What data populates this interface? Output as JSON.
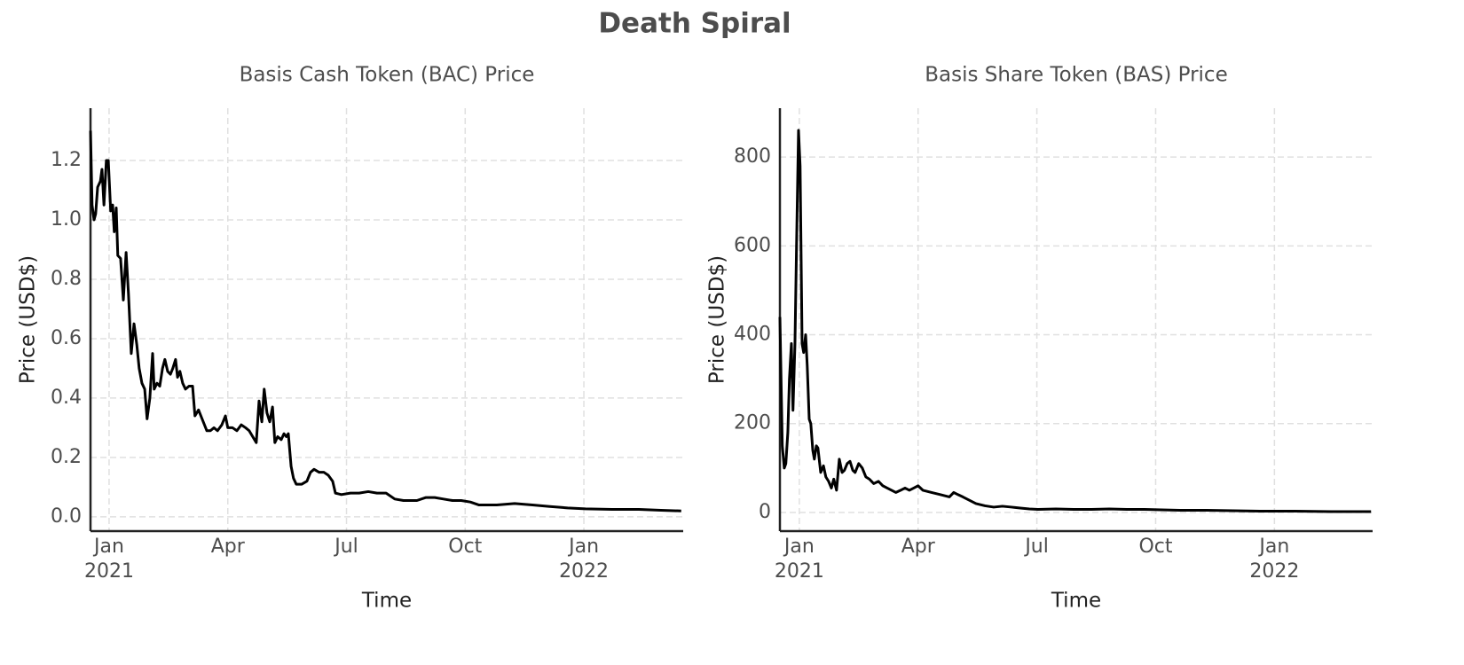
{
  "title": "Death Spiral",
  "chart_data": [
    {
      "type": "line",
      "title": "Basis Cash Token (BAC) Price",
      "xlabel": "Time",
      "ylabel": "Price (USD$)",
      "grid": true,
      "xlim": [
        -0.47,
        14.51
      ],
      "xticks": [
        {
          "value": 0,
          "label": "Jan\n2021"
        },
        {
          "value": 3,
          "label": "Apr"
        },
        {
          "value": 6,
          "label": "Jul"
        },
        {
          "value": 9,
          "label": "Oct"
        },
        {
          "value": 12,
          "label": "Jan\n2022"
        }
      ],
      "ylim": [
        -0.048,
        1.376
      ],
      "yticks": [
        {
          "value": 0,
          "label": "0.0"
        },
        0.2,
        0.4,
        0.6,
        0.8,
        {
          "value": 1,
          "label": "1.0"
        },
        1.2
      ],
      "series": [
        {
          "color": "#000000",
          "x": [
            -0.47,
            -0.43,
            -0.38,
            -0.34,
            -0.29,
            -0.22,
            -0.18,
            -0.13,
            -0.07,
            -0.02,
            0.04,
            0.09,
            0.13,
            0.18,
            0.22,
            0.29,
            0.36,
            0.43,
            0.49,
            0.56,
            0.63,
            0.7,
            0.76,
            0.83,
            0.9,
            0.96,
            1.03,
            1.1,
            1.14,
            1.21,
            1.28,
            1.35,
            1.41,
            1.48,
            1.55,
            1.61,
            1.68,
            1.73,
            1.79,
            1.86,
            1.93,
            2.02,
            2.11,
            2.17,
            2.26,
            2.35,
            2.47,
            2.56,
            2.65,
            2.74,
            2.85,
            2.94,
            3.0,
            3.12,
            3.23,
            3.34,
            3.45,
            3.54,
            3.63,
            3.72,
            3.79,
            3.86,
            3.92,
            3.99,
            4.06,
            4.13,
            4.19,
            4.26,
            4.35,
            4.42,
            4.48,
            4.53,
            4.6,
            4.66,
            4.73,
            4.87,
            5.0,
            5.09,
            5.18,
            5.31,
            5.43,
            5.54,
            5.65,
            5.72,
            5.87,
            6.1,
            6.32,
            6.55,
            6.77,
            7.0,
            7.22,
            7.44,
            7.78,
            8.0,
            8.23,
            8.45,
            8.68,
            8.9,
            9.13,
            9.35,
            9.8,
            10.25,
            10.7,
            11.14,
            11.59,
            12.04,
            12.71,
            13.39,
            13.95,
            14.46
          ],
          "values": [
            1.3,
            1.05,
            1.0,
            1.02,
            1.11,
            1.13,
            1.17,
            1.05,
            1.2,
            1.2,
            1.03,
            1.05,
            0.96,
            1.04,
            0.88,
            0.87,
            0.73,
            0.89,
            0.75,
            0.55,
            0.65,
            0.58,
            0.5,
            0.45,
            0.43,
            0.33,
            0.4,
            0.55,
            0.43,
            0.45,
            0.44,
            0.5,
            0.53,
            0.49,
            0.48,
            0.5,
            0.53,
            0.47,
            0.49,
            0.45,
            0.43,
            0.44,
            0.44,
            0.34,
            0.36,
            0.33,
            0.29,
            0.29,
            0.3,
            0.29,
            0.31,
            0.34,
            0.3,
            0.3,
            0.29,
            0.31,
            0.3,
            0.29,
            0.27,
            0.25,
            0.39,
            0.32,
            0.43,
            0.35,
            0.32,
            0.37,
            0.25,
            0.27,
            0.26,
            0.28,
            0.27,
            0.28,
            0.17,
            0.13,
            0.11,
            0.11,
            0.12,
            0.15,
            0.16,
            0.15,
            0.15,
            0.14,
            0.12,
            0.08,
            0.075,
            0.08,
            0.08,
            0.085,
            0.08,
            0.08,
            0.06,
            0.055,
            0.055,
            0.065,
            0.065,
            0.06,
            0.055,
            0.055,
            0.05,
            0.04,
            0.04,
            0.045,
            0.04,
            0.035,
            0.03,
            0.027,
            0.025,
            0.025,
            0.022,
            0.02
          ]
        }
      ]
    },
    {
      "type": "line",
      "title": "Basis Share Token (BAS) Price",
      "xlabel": "Time",
      "ylabel": "Price (USD$)",
      "grid": true,
      "xlim": [
        -0.49,
        14.48
      ],
      "xticks": [
        {
          "value": 0,
          "label": "Jan\n2021"
        },
        {
          "value": 3,
          "label": "Apr"
        },
        {
          "value": 6,
          "label": "Jul"
        },
        {
          "value": 9,
          "label": "Oct"
        },
        {
          "value": 12,
          "label": "Jan\n2022"
        }
      ],
      "ylim": [
        -42,
        910
      ],
      "yticks": [
        0,
        200,
        400,
        600,
        800
      ],
      "series": [
        {
          "color": "#000000",
          "x": [
            -0.49,
            -0.43,
            -0.38,
            -0.34,
            -0.29,
            -0.25,
            -0.2,
            -0.16,
            -0.11,
            -0.07,
            -0.02,
            0.02,
            0.07,
            0.11,
            0.16,
            0.2,
            0.25,
            0.29,
            0.34,
            0.38,
            0.43,
            0.47,
            0.54,
            0.61,
            0.67,
            0.74,
            0.81,
            0.87,
            0.94,
            1.01,
            1.08,
            1.14,
            1.21,
            1.28,
            1.35,
            1.41,
            1.5,
            1.59,
            1.68,
            1.77,
            1.88,
            2.0,
            2.11,
            2.22,
            2.33,
            2.44,
            2.56,
            2.67,
            2.78,
            2.89,
            3.0,
            3.12,
            3.34,
            3.57,
            3.79,
            3.9,
            4.01,
            4.13,
            4.24,
            4.46,
            4.69,
            4.91,
            5.13,
            5.36,
            5.58,
            5.81,
            6.03,
            6.48,
            6.93,
            7.38,
            7.83,
            8.27,
            8.72,
            9.15,
            9.62,
            10.29,
            10.96,
            11.64,
            12.53,
            13.43,
            14.44
          ],
          "values": [
            440,
            150,
            100,
            110,
            180,
            300,
            380,
            230,
            380,
            600,
            860,
            780,
            380,
            360,
            400,
            330,
            210,
            200,
            140,
            120,
            150,
            145,
            90,
            105,
            80,
            70,
            55,
            75,
            50,
            120,
            90,
            95,
            110,
            115,
            95,
            90,
            110,
            100,
            80,
            75,
            65,
            70,
            60,
            55,
            50,
            45,
            50,
            55,
            50,
            55,
            60,
            50,
            45,
            40,
            35,
            45,
            40,
            35,
            30,
            20,
            15,
            12,
            14,
            12,
            10,
            8,
            7,
            8,
            7,
            7,
            8,
            7,
            7,
            6,
            5,
            5,
            4,
            3,
            3,
            2,
            2
          ]
        }
      ]
    }
  ]
}
